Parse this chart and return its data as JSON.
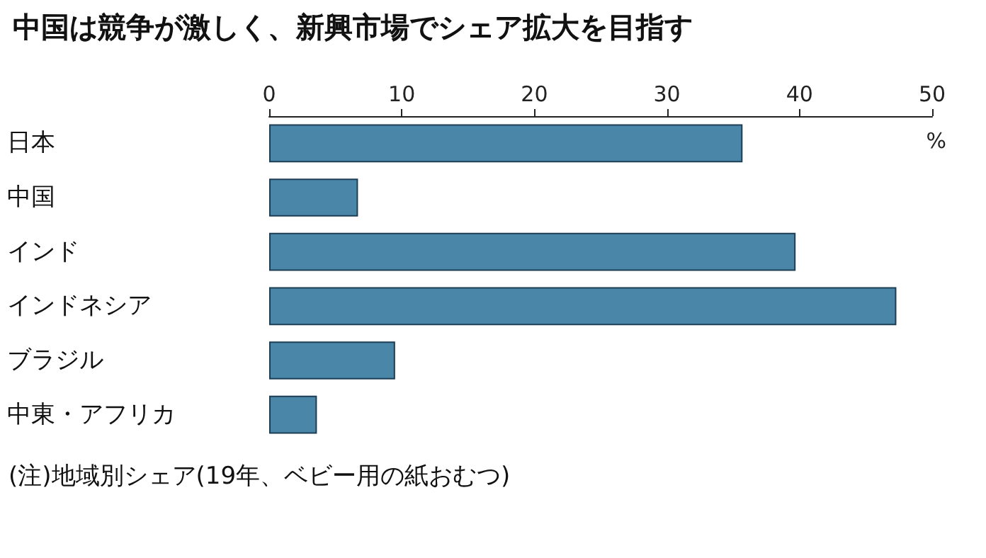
{
  "chart_data": {
    "type": "bar",
    "orientation": "horizontal",
    "title": "中国は競争が激しく、新興市場でシェア拡大を目指す",
    "xlabel": "%",
    "categories": [
      "日本",
      "中国",
      "インド",
      "インドネシア",
      "ブラジル",
      "中東・アフリカ"
    ],
    "values": [
      35.7,
      6.7,
      39.7,
      47.3,
      9.5,
      3.6
    ],
    "color": "#4a86a8",
    "xlim": [
      0,
      50
    ],
    "xticks": [
      0,
      10,
      20,
      30,
      40,
      50
    ],
    "grid": false,
    "annotations": [
      "(注)地域別シェア(19年、ベビー用の紙おむつ)"
    ]
  }
}
